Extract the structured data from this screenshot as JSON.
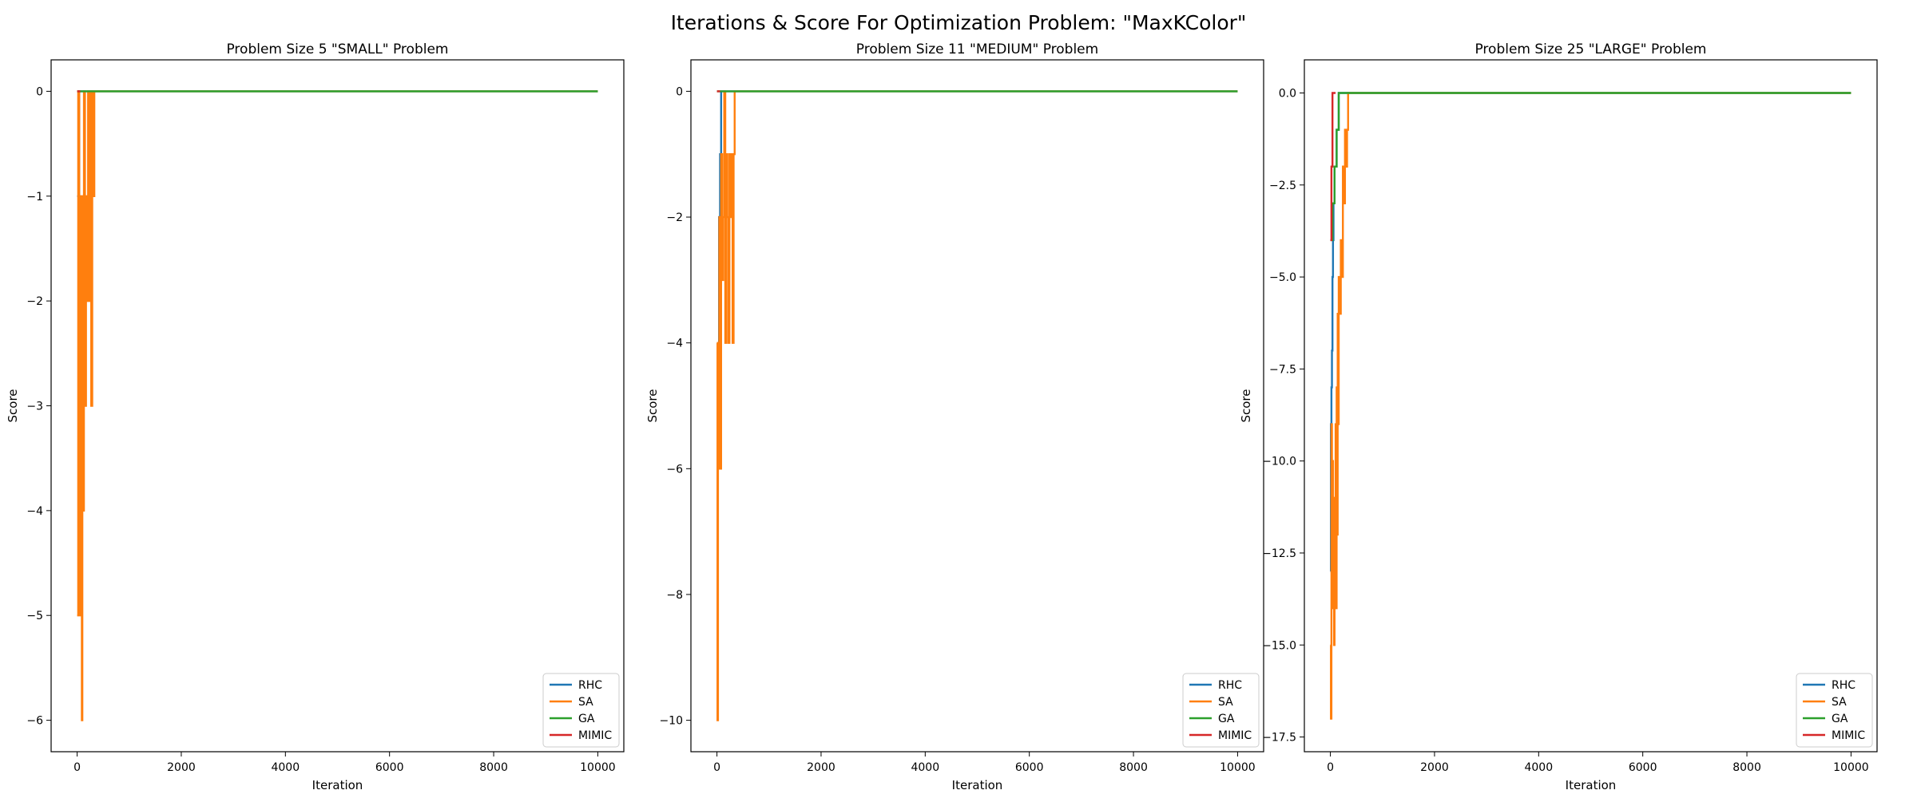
{
  "suptitle": "Iterations & Score For Optimization Problem: \"MaxKColor\"",
  "colors": {
    "RHC": "#1f77b4",
    "SA": "#ff7f0e",
    "GA": "#2ca02c",
    "MIMIC": "#d62728"
  },
  "chart_data": [
    {
      "type": "line",
      "title": "Problem Size 5 \"SMALL\" Problem",
      "xlabel": "Iteration",
      "ylabel": "Score",
      "xlim": [
        -500,
        10500
      ],
      "ylim": [
        -6.3,
        0.3
      ],
      "xticks": [
        0,
        2000,
        4000,
        6000,
        8000,
        10000
      ],
      "xtick_labels": [
        "0",
        "2000",
        "4000",
        "6000",
        "8000",
        "10000"
      ],
      "yticks": [
        0,
        -1,
        -2,
        -3,
        -4,
        -5,
        -6
      ],
      "ytick_labels": [
        "0",
        "−1",
        "−2",
        "−3",
        "−4",
        "−5",
        "−6"
      ],
      "legend": "lower right",
      "grid": false,
      "series": [
        {
          "name": "RHC",
          "step": true,
          "x": [
            0,
            40,
            10000
          ],
          "y": [
            -1,
            0,
            0
          ]
        },
        {
          "name": "SA",
          "step": true,
          "x": [
            0,
            20,
            40,
            60,
            75,
            90,
            100,
            115,
            130,
            150,
            170,
            190,
            210,
            230,
            250,
            270,
            290,
            310,
            330,
            350,
            10000
          ],
          "y": [
            -5,
            0,
            -5,
            -1,
            -4,
            -6,
            -1,
            -4,
            0,
            -3,
            -1,
            -2,
            0,
            -2,
            0,
            -3,
            0,
            -1,
            0,
            0,
            0
          ]
        },
        {
          "name": "GA",
          "step": true,
          "x": [
            0,
            10000
          ],
          "y": [
            0,
            0
          ]
        },
        {
          "name": "MIMIC",
          "step": true,
          "x": [
            0,
            60
          ],
          "y": [
            0,
            0
          ]
        }
      ]
    },
    {
      "type": "line",
      "title": "Problem Size 11 \"MEDIUM\" Problem",
      "xlabel": "Iteration",
      "ylabel": "Score",
      "xlim": [
        -500,
        10500
      ],
      "ylim": [
        -10.5,
        0.5
      ],
      "xticks": [
        0,
        2000,
        4000,
        6000,
        8000,
        10000
      ],
      "xtick_labels": [
        "0",
        "2000",
        "4000",
        "6000",
        "8000",
        "10000"
      ],
      "yticks": [
        0,
        -2,
        -4,
        -6,
        -8,
        -10
      ],
      "ytick_labels": [
        "0",
        "−2",
        "−4",
        "−6",
        "−8",
        "−10"
      ],
      "legend": "lower right",
      "grid": false,
      "series": [
        {
          "name": "RHC",
          "step": true,
          "x": [
            0,
            20,
            40,
            60,
            80,
            100,
            10000
          ],
          "y": [
            -6,
            -4,
            -2,
            -1,
            0,
            0,
            0
          ]
        },
        {
          "name": "SA",
          "step": true,
          "x": [
            0,
            10,
            20,
            30,
            45,
            60,
            80,
            100,
            120,
            140,
            160,
            180,
            200,
            220,
            240,
            260,
            280,
            300,
            320,
            340,
            360,
            10000
          ],
          "y": [
            -4,
            -10,
            -4,
            -6,
            -2,
            -6,
            -1,
            -3,
            -2,
            0,
            -4,
            -1,
            -2,
            -4,
            -1,
            -2,
            -1,
            -4,
            -1,
            0,
            0,
            0
          ]
        },
        {
          "name": "GA",
          "step": true,
          "x": [
            0,
            10000
          ],
          "y": [
            0,
            0
          ]
        },
        {
          "name": "MIMIC",
          "step": true,
          "x": [
            0,
            60
          ],
          "y": [
            0,
            0
          ]
        }
      ]
    },
    {
      "type": "line",
      "title": "Problem Size 25 \"LARGE\" Problem",
      "xlabel": "Iteration",
      "ylabel": "Score",
      "xlim": [
        -500,
        10500
      ],
      "ylim": [
        -17.9,
        0.9
      ],
      "xticks": [
        0,
        2000,
        4000,
        6000,
        8000,
        10000
      ],
      "xtick_labels": [
        "0",
        "2000",
        "4000",
        "6000",
        "8000",
        "10000"
      ],
      "yticks": [
        0,
        -2.5,
        -5,
        -7.5,
        -10,
        -12.5,
        -15,
        -17.5
      ],
      "ytick_labels": [
        "0.0",
        "−2.5",
        "−5.0",
        "−7.5",
        "−10.0",
        "−12.5",
        "−15.0",
        "−17.5"
      ],
      "legend": "lower right",
      "grid": false,
      "series": [
        {
          "name": "RHC",
          "step": true,
          "x": [
            0,
            10,
            20,
            30,
            40,
            50,
            60,
            70,
            80,
            100,
            120,
            140,
            160,
            180,
            200,
            10000
          ],
          "y": [
            -13,
            -9,
            -8,
            -7,
            -5,
            -4,
            -3,
            -3,
            -2,
            -2,
            -1,
            -1,
            0,
            0,
            0,
            0
          ]
        },
        {
          "name": "SA",
          "step": true,
          "x": [
            0,
            10,
            20,
            30,
            40,
            50,
            60,
            70,
            80,
            90,
            100,
            110,
            120,
            130,
            140,
            150,
            160,
            180,
            200,
            220,
            240,
            260,
            280,
            300,
            320,
            340,
            360,
            10000
          ],
          "y": [
            -15,
            -17,
            -9,
            -14,
            -10,
            -14,
            -12,
            -15,
            -11,
            -14,
            -9,
            -14,
            -8,
            -12,
            -6,
            -9,
            -5,
            -6,
            -4,
            -5,
            -2,
            -3,
            -1,
            -2,
            -1,
            0,
            0,
            0
          ]
        },
        {
          "name": "GA",
          "step": true,
          "x": [
            0,
            40,
            80,
            120,
            160,
            200,
            10000
          ],
          "y": [
            -4,
            -3,
            -2,
            -1,
            0,
            0,
            0
          ]
        },
        {
          "name": "MIMIC",
          "step": true,
          "x": [
            0,
            20,
            40,
            60,
            100
          ],
          "y": [
            -4,
            -2,
            0,
            0,
            0
          ]
        }
      ]
    }
  ]
}
